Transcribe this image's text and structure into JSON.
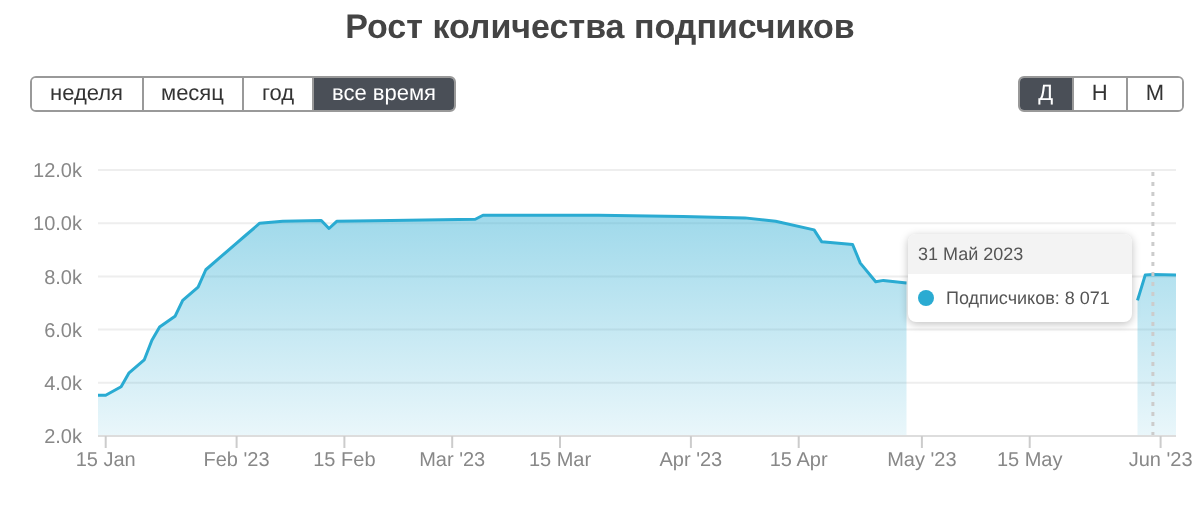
{
  "chart_data": {
    "type": "area",
    "title": "Рост количества подписчиков",
    "x": [
      "2023-01-14",
      "2023-01-15",
      "2023-01-17",
      "2023-01-18",
      "2023-01-20",
      "2023-01-21",
      "2023-01-22",
      "2023-01-24",
      "2023-01-25",
      "2023-01-27",
      "2023-01-28",
      "2023-01-30",
      "2023-02-01",
      "2023-02-02",
      "2023-02-04",
      "2023-02-07",
      "2023-02-12",
      "2023-02-13",
      "2023-02-14",
      "2023-02-21",
      "2023-03-04",
      "2023-03-05",
      "2023-03-20",
      "2023-03-31",
      "2023-04-08",
      "2023-04-12",
      "2023-04-17",
      "2023-04-18",
      "2023-04-22",
      "2023-04-23",
      "2023-04-25",
      "2023-04-26",
      "2023-04-29",
      "2023-05-12",
      "2023-05-29",
      "2023-05-30",
      "2023-05-31",
      "2023-06-03"
    ],
    "series": [
      {
        "color": "#2aabd2",
        "values": [
          3530,
          3530,
          3850,
          4360,
          4860,
          5600,
          6100,
          6500,
          7100,
          7600,
          8250,
          8750,
          9250,
          9500,
          10000,
          10070,
          10100,
          9800,
          10070,
          10100,
          10150,
          10300,
          10300,
          10250,
          10200,
          10070,
          9750,
          9300,
          9200,
          8500,
          7800,
          7850,
          7750,
          null,
          7100,
          8050,
          8070,
          8050
        ]
      }
    ],
    "xlim": [
      "2023-01-14",
      "2023-06-03"
    ],
    "xticks": [
      {
        "value": "2023-01-15",
        "label": "15 Jan"
      },
      {
        "value": "2023-02-01",
        "label": "Feb '23"
      },
      {
        "value": "2023-02-15",
        "label": "15 Feb"
      },
      {
        "value": "2023-03-01",
        "label": "Mar '23"
      },
      {
        "value": "2023-03-15",
        "label": "15 Mar"
      },
      {
        "value": "2023-04-01",
        "label": "Apr '23"
      },
      {
        "value": "2023-04-15",
        "label": "15 Apr"
      },
      {
        "value": "2023-05-01",
        "label": "May '23"
      },
      {
        "value": "2023-05-15",
        "label": "15 May"
      },
      {
        "value": "2023-06-01",
        "label": "Jun '23"
      }
    ],
    "ylim": [
      2000,
      12000
    ],
    "yticks": [
      {
        "value": 2000,
        "label": "2.0k"
      },
      {
        "value": 4000,
        "label": "4.0k"
      },
      {
        "value": 6000,
        "label": "6.0k"
      },
      {
        "value": 8000,
        "label": "8.0k"
      },
      {
        "value": 10000,
        "label": "10.0k"
      },
      {
        "value": 12000,
        "label": "12.0k"
      }
    ],
    "grid": "y",
    "marker": "none",
    "ref_lines": [
      {
        "axis": "x",
        "value": "2023-05-31",
        "line_style": "dotted",
        "color": "#cccccc"
      }
    ],
    "annotations": [
      "неделя",
      "месяц",
      "год",
      "все время",
      "Д",
      "Н",
      "М",
      "31 Май 2023",
      "Подписчиков: 8 071"
    ]
  }
}
